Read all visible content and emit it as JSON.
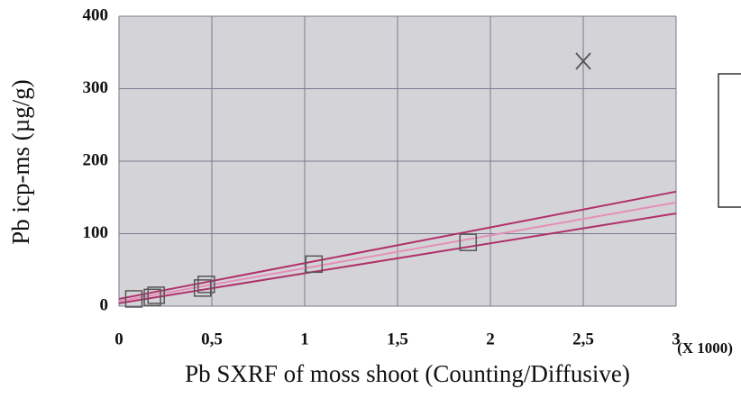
{
  "chart_data": {
    "type": "scatter",
    "x_label": "Pb SXRF of moss shoot (Counting/Diffusive)",
    "y_label": "Pb icp-ms (µg/g)",
    "x_multiplier": "(X 1000)",
    "xlim": [
      0,
      3
    ],
    "ylim": [
      0,
      400
    ],
    "xticks": [
      0,
      {
        "value": 0.5,
        "label": "0,5"
      },
      1,
      {
        "value": 1.5,
        "label": "1,5"
      },
      2,
      {
        "value": 2.5,
        "label": "2,5"
      },
      3
    ],
    "yticks": [
      0,
      100,
      200,
      300,
      400
    ],
    "grid": true,
    "points": {
      "color": "#555555",
      "x": [
        0.08,
        0.18,
        0.2,
        0.45,
        0.47,
        1.05,
        1.88
      ],
      "values": [
        10,
        12,
        15,
        25,
        30,
        58,
        88
      ]
    },
    "outliers": {
      "color": "#555555",
      "x": [
        2.5
      ],
      "values": [
        338
      ]
    },
    "lines": [
      {
        "color": "#b0306a",
        "x": [
          0,
          3
        ],
        "values": [
          10,
          158
        ]
      },
      {
        "color": "#e58fb8",
        "x": [
          0,
          3
        ],
        "values": [
          7,
          143
        ]
      },
      {
        "color": "#b0306a",
        "x": [
          0,
          3
        ],
        "values": [
          4,
          128
        ]
      }
    ]
  }
}
